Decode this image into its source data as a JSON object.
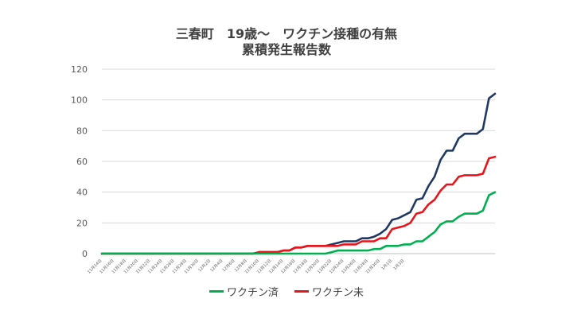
{
  "chart_data": {
    "type": "line",
    "title_line1": "三春町　19歳～　ワクチン接種の有無",
    "title_line2": "累積発生報告数",
    "xlabel": "",
    "ylabel": "",
    "ylim": [
      0,
      120
    ],
    "yticks": [
      "0",
      "20",
      "40",
      "60",
      "80",
      "100",
      "120"
    ],
    "xtick_labels": [
      "11月14日",
      "11月16日",
      "11月18日",
      "11月20日",
      "11月22日",
      "11月24日",
      "11月26日",
      "11月28日",
      "11月30日",
      "12月2日",
      "12月4日",
      "12月6日",
      "12月8日",
      "12月10日",
      "12月12日",
      "12月14日",
      "12月16日",
      "12月18日",
      "12月20日",
      "12月22日",
      "12月24日",
      "12月26日",
      "12月28日",
      "12月30日",
      "1月1日",
      "1月3日"
    ],
    "grid": "horizontal",
    "legend_position": "bottom",
    "series": [
      {
        "name": "",
        "color": "#1f3864",
        "values": [
          0,
          0,
          0,
          0,
          0,
          0,
          0,
          0,
          0,
          0,
          0,
          0,
          0,
          0,
          0,
          0,
          0,
          0,
          0,
          0,
          0,
          0,
          0,
          0,
          0,
          0,
          1,
          1,
          1,
          1,
          2,
          2,
          4,
          4,
          5,
          5,
          5,
          5,
          6,
          7,
          8,
          8,
          8,
          10,
          10,
          11,
          13,
          16,
          22,
          23,
          25,
          27,
          35,
          36,
          44,
          50,
          61,
          67,
          67,
          75,
          78,
          78,
          78,
          81,
          101,
          104
        ]
      },
      {
        "name": "ワクチン未",
        "color": "#e8141b",
        "values": [
          0,
          0,
          0,
          0,
          0,
          0,
          0,
          0,
          0,
          0,
          0,
          0,
          0,
          0,
          0,
          0,
          0,
          0,
          0,
          0,
          0,
          0,
          0,
          0,
          0,
          0,
          1,
          1,
          1,
          1,
          2,
          2,
          4,
          4,
          5,
          5,
          5,
          5,
          5,
          5,
          6,
          6,
          6,
          8,
          8,
          8,
          10,
          10,
          16,
          17,
          18,
          20,
          26,
          27,
          32,
          35,
          41,
          45,
          45,
          50,
          51,
          51,
          51,
          52,
          62,
          63
        ]
      },
      {
        "name": "ワクチン済",
        "color": "#00b050",
        "values": [
          0,
          0,
          0,
          0,
          0,
          0,
          0,
          0,
          0,
          0,
          0,
          0,
          0,
          0,
          0,
          0,
          0,
          0,
          0,
          0,
          0,
          0,
          0,
          0,
          0,
          0,
          0,
          0,
          0,
          0,
          0,
          0,
          0,
          0,
          0,
          0,
          0,
          0,
          1,
          2,
          2,
          2,
          2,
          2,
          2,
          3,
          3,
          5,
          5,
          5,
          6,
          6,
          8,
          8,
          11,
          14,
          19,
          21,
          21,
          24,
          26,
          26,
          26,
          28,
          38,
          40
        ]
      }
    ]
  }
}
